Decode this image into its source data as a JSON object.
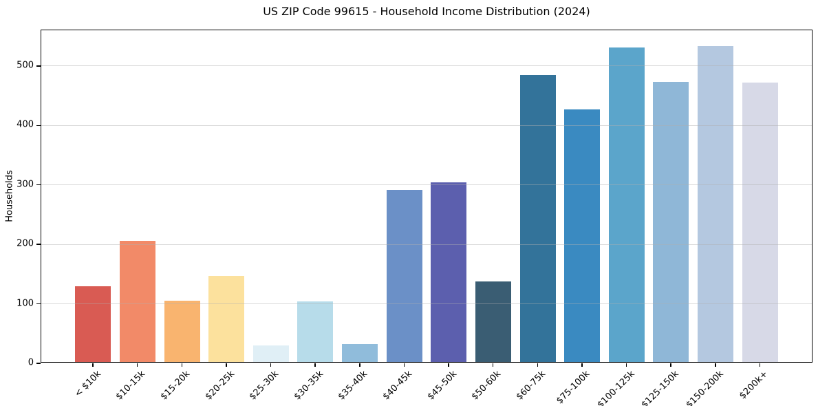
{
  "figure": {
    "title": "US ZIP Code 99615 - Household Income Distribution (2024)",
    "ylabel": "Households"
  },
  "chart_data": {
    "type": "bar",
    "title": "US ZIP Code 99615 - Household Income Distribution (2024)",
    "xlabel": "",
    "ylabel": "Households",
    "ylim": [
      0,
      560
    ],
    "yticks": [
      0,
      100,
      200,
      300,
      400,
      500
    ],
    "grid": "horizontal-only",
    "legend": "none",
    "x_tick_rotation_deg": 45,
    "categories": [
      "< $10k",
      "$10-15k",
      "$15-20k",
      "$20-25k",
      "$25-30k",
      "$30-35k",
      "$35-40k",
      "$40-45k",
      "$45-50k",
      "$50-60k",
      "$60-75k",
      "$75-100k",
      "$100-125k",
      "$125-150k",
      "$150-200k",
      "$200k+"
    ],
    "values": [
      128,
      205,
      103,
      145,
      28,
      102,
      30,
      290,
      303,
      136,
      485,
      426,
      531,
      473,
      533,
      472
    ],
    "bar_colors": [
      "#d95b53",
      "#f28a68",
      "#f9b46f",
      "#fce19d",
      "#e0eff6",
      "#b7dcea",
      "#90bcdb",
      "#6b90c7",
      "#5c5fae",
      "#3a5d73",
      "#33739a",
      "#3a8ac1",
      "#5ba5cb",
      "#8fb7d7",
      "#b4c8e0",
      "#d7d9e7"
    ],
    "colors": {
      "spine": "#000000",
      "gridline": "#b0b0b0",
      "background": "#ffffff"
    }
  }
}
